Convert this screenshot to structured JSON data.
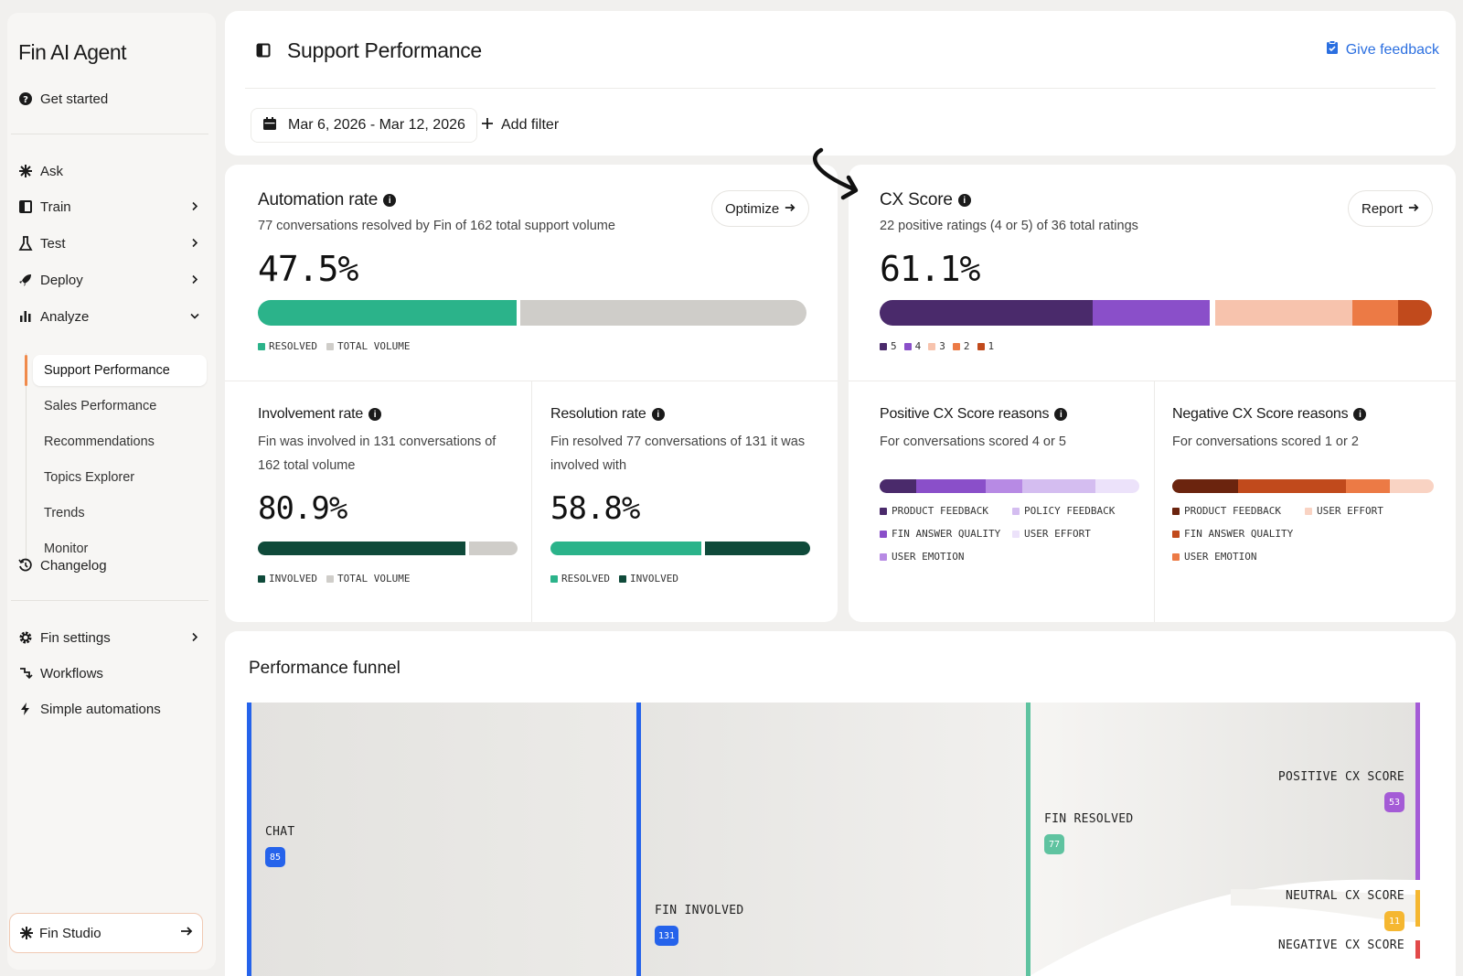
{
  "sidebar": {
    "title": "Fin AI Agent",
    "get_started": "Get started",
    "items": [
      {
        "label": "Ask"
      },
      {
        "label": "Train"
      },
      {
        "label": "Test"
      },
      {
        "label": "Deploy"
      },
      {
        "label": "Analyze"
      }
    ],
    "analyze_sub": [
      {
        "label": "Support Performance"
      },
      {
        "label": "Sales Performance"
      },
      {
        "label": "Recommendations"
      },
      {
        "label": "Topics Explorer"
      },
      {
        "label": "Trends"
      },
      {
        "label": "Monitor"
      }
    ],
    "changelog": "Changelog",
    "settings": [
      {
        "label": "Fin settings"
      },
      {
        "label": "Workflows"
      },
      {
        "label": "Simple automations"
      }
    ],
    "studio": "Fin Studio"
  },
  "header": {
    "title": "Support Performance",
    "feedback": "Give feedback",
    "date_range": "Mar 6, 2026 - Mar 12, 2026",
    "add_filter": "Add filter"
  },
  "automation": {
    "title": "Automation rate",
    "subtitle": "77 conversations resolved by Fin of 162 total support volume",
    "value": "47.5%",
    "button": "Optimize",
    "fraction": 0.475,
    "legend": [
      "RESOLVED",
      "TOTAL VOLUME"
    ]
  },
  "cx": {
    "title": "CX Score",
    "subtitle": "22 positive ratings (4 or 5) of 36 total ratings",
    "value": "61.1%",
    "button": "Report",
    "legend": [
      "5",
      "4",
      "3",
      "2",
      "1"
    ]
  },
  "involvement": {
    "title": "Involvement rate",
    "subtitle": "Fin was involved in 131 conversations of 162 total volume",
    "value": "80.9%",
    "fraction": 0.809,
    "legend": [
      "INVOLVED",
      "TOTAL VOLUME"
    ]
  },
  "resolution": {
    "title": "Resolution rate",
    "subtitle": "Fin resolved 77 conversations of 131 it was involved with",
    "value": "58.8%",
    "fraction": 0.588,
    "legend": [
      "RESOLVED",
      "INVOLVED"
    ]
  },
  "positive_reasons": {
    "title": "Positive CX Score reasons",
    "subtitle": "For conversations scored 4 or 5",
    "legend": [
      "PRODUCT FEEDBACK",
      "POLICY FEEDBACK",
      "FIN ANSWER QUALITY",
      "USER EFFORT",
      "USER EMOTION"
    ]
  },
  "negative_reasons": {
    "title": "Negative CX Score reasons",
    "subtitle": "For conversations scored 1 or 2",
    "legend": [
      "PRODUCT FEEDBACK",
      "USER EFFORT",
      "FIN ANSWER QUALITY",
      "USER EMOTION"
    ]
  },
  "funnel": {
    "title": "Performance funnel",
    "chat": {
      "label": "CHAT",
      "count": "85"
    },
    "involved": {
      "label": "FIN INVOLVED",
      "count": "131"
    },
    "resolved": {
      "label": "FIN RESOLVED",
      "count": "77"
    },
    "positive": {
      "label": "POSITIVE CX SCORE",
      "count": "53"
    },
    "neutral": {
      "label": "NEUTRAL CX SCORE",
      "count": "11"
    },
    "negative": {
      "label": "NEGATIVE CX SCORE"
    }
  },
  "colors": {
    "green": "#2bb38a",
    "dark_green": "#0f4a3a",
    "gray": "#cfcdc9",
    "blue": "#2563eb",
    "purple": "#a45bd6",
    "amber": "#f5b731",
    "link": "#2b6fe0"
  }
}
